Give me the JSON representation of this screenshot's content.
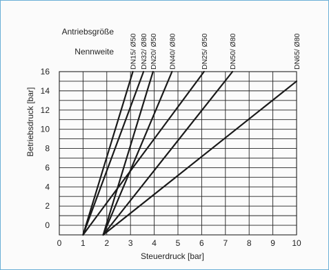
{
  "header": {
    "row1_label": "Antriebsgröße",
    "row2_label": "Nennweite"
  },
  "colors": {
    "frame_border": "#6aaed6",
    "line": "#1a1a1a",
    "grid": "#222222"
  },
  "chart_data": {
    "type": "line",
    "xlabel": "Steuerdruck [bar]",
    "ylabel": "Betriebsdruck [bar]",
    "xlim": [
      0,
      10
    ],
    "ylim": [
      -1,
      16
    ],
    "xticks": [
      0,
      1,
      2,
      3,
      4,
      5,
      6,
      7,
      8,
      9,
      10
    ],
    "yticks": [
      0,
      2,
      4,
      6,
      8,
      10,
      12,
      14,
      16
    ],
    "grid": true,
    "series": [
      {
        "name": "DN15/ Ø50",
        "x": [
          1,
          3.1
        ],
        "y": [
          -1,
          16
        ]
      },
      {
        "name": "DN32/ Ø80",
        "x": [
          1,
          3.55
        ],
        "y": [
          -1,
          16
        ]
      },
      {
        "name": "DN20/ Ø50",
        "x": [
          1.85,
          3.95
        ],
        "y": [
          -1,
          16
        ]
      },
      {
        "name": "DN40/ Ø80",
        "x": [
          1.85,
          4.75
        ],
        "y": [
          -1,
          16
        ]
      },
      {
        "name": "DN25/ Ø50",
        "x": [
          1,
          6.1
        ],
        "y": [
          -1,
          16
        ]
      },
      {
        "name": "DN50/ Ø80",
        "x": [
          1.85,
          7.3
        ],
        "y": [
          -1,
          16
        ]
      },
      {
        "name": "DN65/ Ø80",
        "x": [
          1.85,
          10.0
        ],
        "y": [
          -1,
          15
        ]
      }
    ]
  }
}
